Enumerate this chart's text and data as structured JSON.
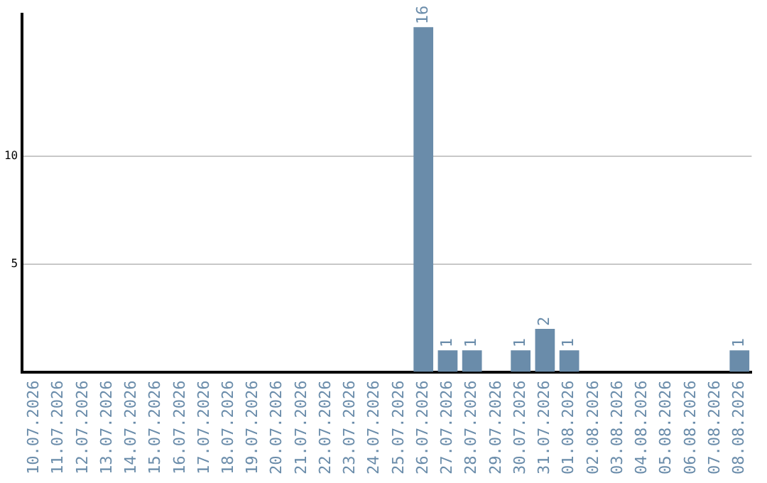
{
  "chart_data": {
    "type": "bar",
    "categories": [
      "10.07.2026",
      "11.07.2026",
      "12.07.2026",
      "13.07.2026",
      "14.07.2026",
      "15.07.2026",
      "16.07.2026",
      "17.07.2026",
      "18.07.2026",
      "19.07.2026",
      "20.07.2026",
      "21.07.2026",
      "22.07.2026",
      "23.07.2026",
      "24.07.2026",
      "25.07.2026",
      "26.07.2026",
      "27.07.2026",
      "28.07.2026",
      "29.07.2026",
      "30.07.2026",
      "31.07.2026",
      "01.08.2026",
      "02.08.2026",
      "03.08.2026",
      "04.08.2026",
      "05.08.2026",
      "06.08.2026",
      "07.08.2026",
      "08.08.2026"
    ],
    "values": [
      0,
      0,
      0,
      0,
      0,
      0,
      0,
      0,
      0,
      0,
      0,
      0,
      0,
      0,
      0,
      0,
      16,
      1,
      1,
      0,
      1,
      2,
      1,
      0,
      0,
      0,
      0,
      0,
      0,
      1
    ],
    "value_labels": [
      null,
      null,
      null,
      null,
      null,
      null,
      null,
      null,
      null,
      null,
      null,
      null,
      null,
      null,
      null,
      null,
      "16",
      "1",
      "1",
      null,
      "1",
      "2",
      "1",
      null,
      null,
      null,
      null,
      null,
      null,
      "1"
    ],
    "color": "#6a8caa",
    "ylim": [
      0,
      16.6
    ],
    "yticks": [
      5,
      10
    ],
    "grid": "y"
  }
}
